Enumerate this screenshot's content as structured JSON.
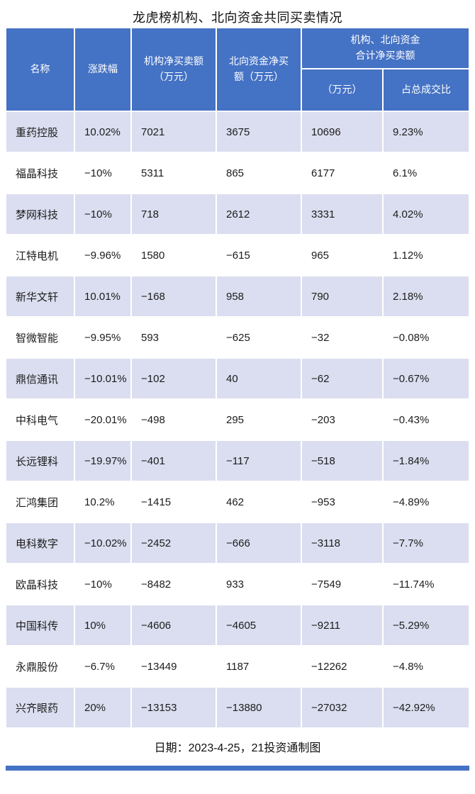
{
  "page": {
    "title": "龙虎榜机构、北向资金共同买卖情况",
    "footer": "日期：2023-4-25，21投资通制图"
  },
  "colors": {
    "header_bg": "#4472c4",
    "row_alt_bg": "#dbdef0",
    "accent_bar": "#4472c4",
    "body_text": "#1c1c1c"
  },
  "table": {
    "headers": {
      "name": "名称",
      "change": "涨跌幅",
      "inst": "机构净买卖额\n（万元）",
      "north": "北向资金净买\n额（万元）",
      "combined_group": "机构、北向资金\n合计净买卖额",
      "combined_amount": "（万元）",
      "combined_ratio": "占总成交比"
    },
    "rows": [
      {
        "name": "重药控股",
        "change": "10.02%",
        "inst": "7021",
        "north": "3675",
        "total": "10696",
        "ratio": "9.23%"
      },
      {
        "name": "福晶科技",
        "change": "−10%",
        "inst": "5311",
        "north": "865",
        "total": "6177",
        "ratio": "6.1%"
      },
      {
        "name": "梦网科技",
        "change": "−10%",
        "inst": "718",
        "north": "2612",
        "total": "3331",
        "ratio": "4.02%"
      },
      {
        "name": "江特电机",
        "change": "−9.96%",
        "inst": "1580",
        "north": "−615",
        "total": "965",
        "ratio": "1.12%"
      },
      {
        "name": "新华文轩",
        "change": "10.01%",
        "inst": "−168",
        "north": "958",
        "total": "790",
        "ratio": "2.18%"
      },
      {
        "name": "智微智能",
        "change": "−9.95%",
        "inst": "593",
        "north": "−625",
        "total": "−32",
        "ratio": "−0.08%"
      },
      {
        "name": "鼎信通讯",
        "change": "−10.01%",
        "inst": "−102",
        "north": "40",
        "total": "−62",
        "ratio": "−0.67%"
      },
      {
        "name": "中科电气",
        "change": "−20.01%",
        "inst": "−498",
        "north": "295",
        "total": "−203",
        "ratio": "−0.43%"
      },
      {
        "name": "长远锂科",
        "change": "−19.97%",
        "inst": "−401",
        "north": "−117",
        "total": "−518",
        "ratio": "−1.84%"
      },
      {
        "name": "汇鸿集团",
        "change": "10.2%",
        "inst": "−1415",
        "north": "462",
        "total": "−953",
        "ratio": "−4.89%"
      },
      {
        "name": "电科数字",
        "change": "−10.02%",
        "inst": "−2452",
        "north": "−666",
        "total": "−3118",
        "ratio": "−7.7%"
      },
      {
        "name": "欧晶科技",
        "change": "−10%",
        "inst": "−8482",
        "north": "933",
        "total": "−7549",
        "ratio": "−11.74%"
      },
      {
        "name": "中国科传",
        "change": "10%",
        "inst": "−4606",
        "north": "−4605",
        "total": "−9211",
        "ratio": "−5.29%"
      },
      {
        "name": "永鼎股份",
        "change": "−6.7%",
        "inst": "−13449",
        "north": "1187",
        "total": "−12262",
        "ratio": "−4.8%"
      },
      {
        "name": "兴齐眼药",
        "change": "20%",
        "inst": "−13153",
        "north": "−13880",
        "total": "−27032",
        "ratio": "−42.92%"
      }
    ]
  },
  "chart_data": {
    "type": "table",
    "title": "龙虎榜机构、北向资金共同买卖情况",
    "columns": [
      "名称",
      "涨跌幅",
      "机构净买卖额（万元）",
      "北向资金净买额（万元）",
      "机构、北向资金合计净买卖额（万元）",
      "机构、北向资金合计净买卖额占总成交比"
    ],
    "rows": [
      [
        "重药控股",
        "10.02%",
        7021,
        3675,
        10696,
        "9.23%"
      ],
      [
        "福晶科技",
        "-10%",
        5311,
        865,
        6177,
        "6.1%"
      ],
      [
        "梦网科技",
        "-10%",
        718,
        2612,
        3331,
        "4.02%"
      ],
      [
        "江特电机",
        "-9.96%",
        1580,
        -615,
        965,
        "1.12%"
      ],
      [
        "新华文轩",
        "10.01%",
        -168,
        958,
        790,
        "2.18%"
      ],
      [
        "智微智能",
        "-9.95%",
        593,
        -625,
        -32,
        "-0.08%"
      ],
      [
        "鼎信通讯",
        "-10.01%",
        -102,
        40,
        -62,
        "-0.67%"
      ],
      [
        "中科电气",
        "-20.01%",
        -498,
        295,
        -203,
        "-0.43%"
      ],
      [
        "长远锂科",
        "-19.97%",
        -401,
        -117,
        -518,
        "-1.84%"
      ],
      [
        "汇鸿集团",
        "10.2%",
        -1415,
        462,
        -953,
        "-4.89%"
      ],
      [
        "电科数字",
        "-10.02%",
        -2452,
        -666,
        -3118,
        "-7.7%"
      ],
      [
        "欧晶科技",
        "-10%",
        -8482,
        933,
        -7549,
        "-11.74%"
      ],
      [
        "中国科传",
        "10%",
        -4606,
        -4605,
        -9211,
        "-5.29%"
      ],
      [
        "永鼎股份",
        "-6.7%",
        -13449,
        1187,
        -12262,
        "-4.8%"
      ],
      [
        "兴齐眼药",
        "20%",
        -13153,
        -13880,
        -27032,
        "-42.92%"
      ]
    ],
    "footer_note": "日期：2023-4-25，21投资通制图",
    "layout": {
      "zebra_striping": true,
      "header_bg": "#4472c4",
      "alt_row_bg": "#dbdef0"
    }
  }
}
